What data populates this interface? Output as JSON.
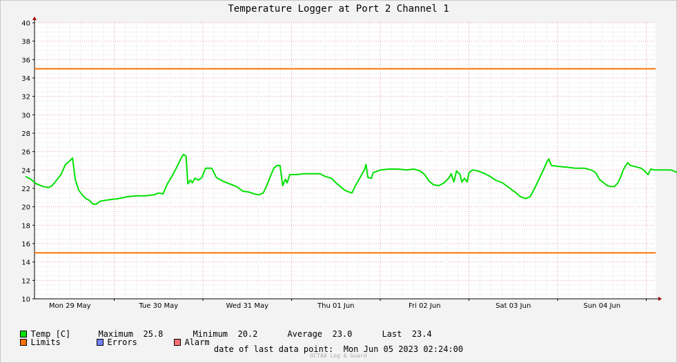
{
  "chart_data": {
    "type": "line",
    "title": "Temperature Logger at Port 2 Channel 1",
    "ylim": [
      10,
      40
    ],
    "yticks": [
      10,
      12,
      14,
      16,
      18,
      20,
      22,
      24,
      26,
      28,
      30,
      32,
      34,
      36,
      38,
      40
    ],
    "x_categories": [
      "Mon 29 May",
      "Tue 30 May",
      "Wed 31 May",
      "Thu 01 Jun",
      "Fri 02 Jun",
      "Sat 03 Jun",
      "Sun 04 Jun"
    ],
    "x_range_days": [
      0,
      7.0
    ],
    "grid": true,
    "limits": {
      "upper": 35,
      "lower": 15,
      "color": "#ff7000"
    },
    "series": [
      {
        "name": "Temp [C]",
        "color": "#00e000",
        "points": [
          [
            0.0,
            23.3
          ],
          [
            0.06,
            23.0
          ],
          [
            0.12,
            22.5
          ],
          [
            0.2,
            22.2
          ],
          [
            0.26,
            22.1
          ],
          [
            0.3,
            22.3
          ],
          [
            0.35,
            22.9
          ],
          [
            0.4,
            23.5
          ],
          [
            0.45,
            24.6
          ],
          [
            0.5,
            25.0
          ],
          [
            0.53,
            25.3
          ],
          [
            0.56,
            23.0
          ],
          [
            0.6,
            21.8
          ],
          [
            0.64,
            21.3
          ],
          [
            0.68,
            20.9
          ],
          [
            0.72,
            20.7
          ],
          [
            0.76,
            20.3
          ],
          [
            0.8,
            20.3
          ],
          [
            0.84,
            20.6
          ],
          [
            0.9,
            20.7
          ],
          [
            0.97,
            20.8
          ],
          [
            1.05,
            20.9
          ],
          [
            1.15,
            21.1
          ],
          [
            1.25,
            21.2
          ],
          [
            1.35,
            21.2
          ],
          [
            1.45,
            21.3
          ],
          [
            1.5,
            21.5
          ],
          [
            1.55,
            21.4
          ],
          [
            1.6,
            22.5
          ],
          [
            1.65,
            23.3
          ],
          [
            1.7,
            24.2
          ],
          [
            1.75,
            25.2
          ],
          [
            1.78,
            25.7
          ],
          [
            1.81,
            25.5
          ],
          [
            1.83,
            22.5
          ],
          [
            1.86,
            22.9
          ],
          [
            1.88,
            22.6
          ],
          [
            1.91,
            23.1
          ],
          [
            1.95,
            22.9
          ],
          [
            1.99,
            23.2
          ],
          [
            2.03,
            24.2
          ],
          [
            2.1,
            24.2
          ],
          [
            2.15,
            23.2
          ],
          [
            2.22,
            22.8
          ],
          [
            2.3,
            22.5
          ],
          [
            2.38,
            22.2
          ],
          [
            2.45,
            21.7
          ],
          [
            2.52,
            21.6
          ],
          [
            2.58,
            21.4
          ],
          [
            2.63,
            21.3
          ],
          [
            2.68,
            21.5
          ],
          [
            2.72,
            22.3
          ],
          [
            2.76,
            23.3
          ],
          [
            2.8,
            24.2
          ],
          [
            2.84,
            24.5
          ],
          [
            2.87,
            24.5
          ],
          [
            2.9,
            22.3
          ],
          [
            2.93,
            23.0
          ],
          [
            2.95,
            22.6
          ],
          [
            2.98,
            23.5
          ],
          [
            3.05,
            23.5
          ],
          [
            3.15,
            23.6
          ],
          [
            3.25,
            23.6
          ],
          [
            3.32,
            23.6
          ],
          [
            3.38,
            23.3
          ],
          [
            3.45,
            23.1
          ],
          [
            3.5,
            22.6
          ],
          [
            3.55,
            22.2
          ],
          [
            3.6,
            21.8
          ],
          [
            3.65,
            21.6
          ],
          [
            3.68,
            21.5
          ],
          [
            3.72,
            22.3
          ],
          [
            3.78,
            23.3
          ],
          [
            3.82,
            24.0
          ],
          [
            3.84,
            24.6
          ],
          [
            3.86,
            23.2
          ],
          [
            3.9,
            23.1
          ],
          [
            3.92,
            23.7
          ],
          [
            4.0,
            24.0
          ],
          [
            4.1,
            24.1
          ],
          [
            4.2,
            24.1
          ],
          [
            4.3,
            24.0
          ],
          [
            4.38,
            24.1
          ],
          [
            4.45,
            23.9
          ],
          [
            4.5,
            23.5
          ],
          [
            4.55,
            22.8
          ],
          [
            4.6,
            22.4
          ],
          [
            4.66,
            22.3
          ],
          [
            4.72,
            22.6
          ],
          [
            4.78,
            23.2
          ],
          [
            4.8,
            23.6
          ],
          [
            4.83,
            22.7
          ],
          [
            4.86,
            23.9
          ],
          [
            4.9,
            23.5
          ],
          [
            4.92,
            22.7
          ],
          [
            4.95,
            23.1
          ],
          [
            4.98,
            22.7
          ],
          [
            5.0,
            23.7
          ],
          [
            5.04,
            24.0
          ],
          [
            5.1,
            23.9
          ],
          [
            5.18,
            23.6
          ],
          [
            5.24,
            23.3
          ],
          [
            5.3,
            22.9
          ],
          [
            5.38,
            22.6
          ],
          [
            5.45,
            22.1
          ],
          [
            5.52,
            21.6
          ],
          [
            5.58,
            21.1
          ],
          [
            5.64,
            20.9
          ],
          [
            5.69,
            21.1
          ],
          [
            5.74,
            22.0
          ],
          [
            5.79,
            23.0
          ],
          [
            5.84,
            24.0
          ],
          [
            5.88,
            24.9
          ],
          [
            5.9,
            25.2
          ],
          [
            5.93,
            24.5
          ],
          [
            6.0,
            24.4
          ],
          [
            6.1,
            24.3
          ],
          [
            6.2,
            24.2
          ],
          [
            6.3,
            24.2
          ],
          [
            6.38,
            24.0
          ],
          [
            6.43,
            23.7
          ],
          [
            6.47,
            23.0
          ],
          [
            6.52,
            22.6
          ],
          [
            6.56,
            22.3
          ],
          [
            6.6,
            22.2
          ],
          [
            6.64,
            22.2
          ],
          [
            6.68,
            22.6
          ],
          [
            6.71,
            23.2
          ],
          [
            6.74,
            24.0
          ],
          [
            6.77,
            24.5
          ],
          [
            6.79,
            24.8
          ],
          [
            6.82,
            24.5
          ],
          [
            6.9,
            24.3
          ],
          [
            6.94,
            24.2
          ],
          [
            6.97,
            24.0
          ],
          [
            6.99,
            23.8
          ],
          [
            7.02,
            23.5
          ],
          [
            7.05,
            24.1
          ],
          [
            7.1,
            24.0
          ],
          [
            7.2,
            24.0
          ],
          [
            7.28,
            24.0
          ],
          [
            7.33,
            23.8
          ],
          [
            7.4,
            23.6
          ],
          [
            7.44,
            23.4
          ]
        ]
      }
    ]
  },
  "legend": {
    "temp_label": "Temp [C]",
    "max_label": "Maximum",
    "max_value": "25.8",
    "min_label": "Minimum",
    "min_value": "20.2",
    "avg_label": "Average",
    "avg_value": "23.0",
    "last_label": "Last",
    "last_value": "23.4",
    "limits_label": "Limits",
    "errors_label": "Errors",
    "alarm_label": "Alarm",
    "temp_color": "#00e000",
    "limits_color": "#ff7000",
    "errors_color": "#7080ff",
    "alarm_color": "#ff7070"
  },
  "footer": {
    "last_point_label": "date of last data point:",
    "last_point_value": "Mon Jun 05 2023 02:24:00",
    "credit": "OCTAA Log & Guard"
  }
}
